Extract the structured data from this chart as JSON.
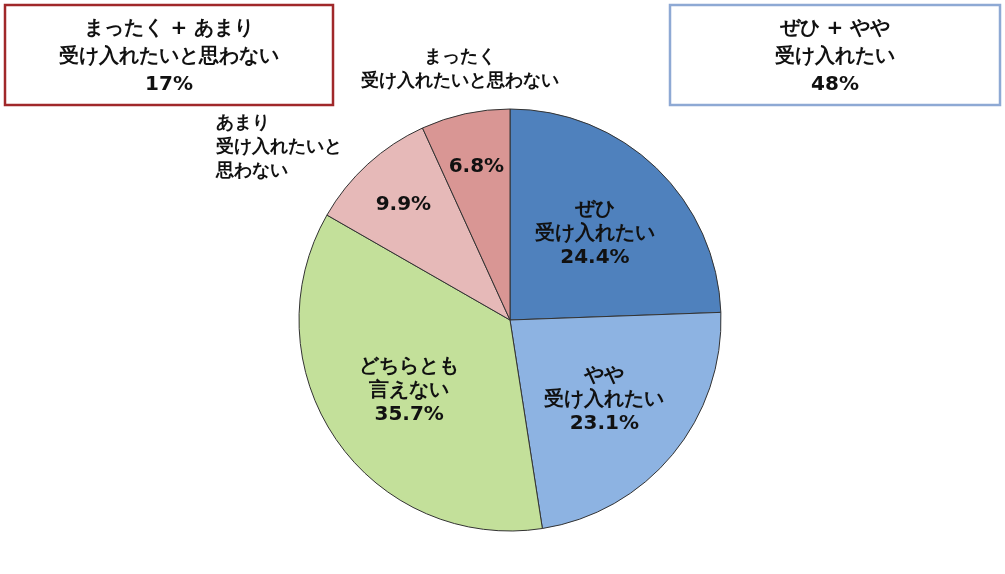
{
  "chart_data": {
    "type": "pie",
    "categories": [
      "ぜひ受け入れたい",
      "やや受け入れたい",
      "どちらとも言えない",
      "あまり受け入れたいと思わない",
      "まったく受け入れたいと思わない"
    ],
    "values": [
      24.4,
      23.1,
      35.7,
      9.9,
      6.8
    ],
    "colors": [
      "#4f81bd",
      "#8db3e2",
      "#c3e09a",
      "#e6b9b8",
      "#d99694"
    ],
    "value_labels": [
      "24.4%",
      "23.1%",
      "35.7%",
      "9.9%",
      "6.8%"
    ],
    "annotations": [
      "まったく + あまり受け入れたいと思わない17%",
      "ぜひ + やや受け入れたい48%"
    ]
  }
}
